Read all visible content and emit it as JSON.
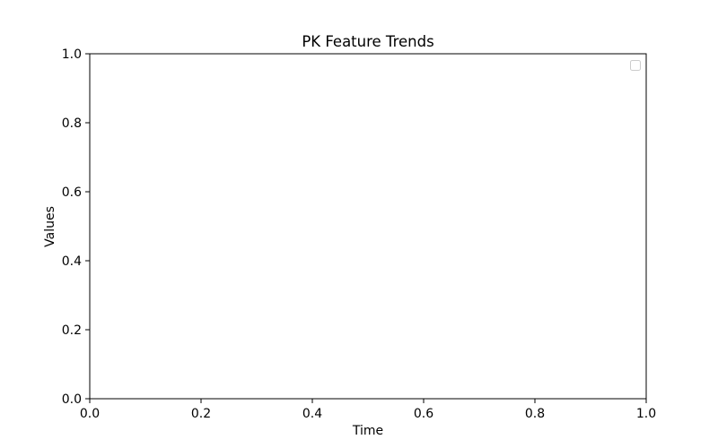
{
  "chart_data": {
    "type": "line",
    "title": "PK Feature Trends",
    "xlabel": "Time",
    "ylabel": "Values",
    "xlim": [
      0.0,
      1.0
    ],
    "ylim": [
      0.0,
      1.0
    ],
    "xticks": [
      "0.0",
      "0.2",
      "0.4",
      "0.6",
      "0.8",
      "1.0"
    ],
    "yticks": [
      "0.0",
      "0.2",
      "0.4",
      "0.6",
      "0.8",
      "1.0"
    ],
    "series": [],
    "grid": false,
    "legend": {
      "location": "upper right",
      "entries": []
    }
  }
}
